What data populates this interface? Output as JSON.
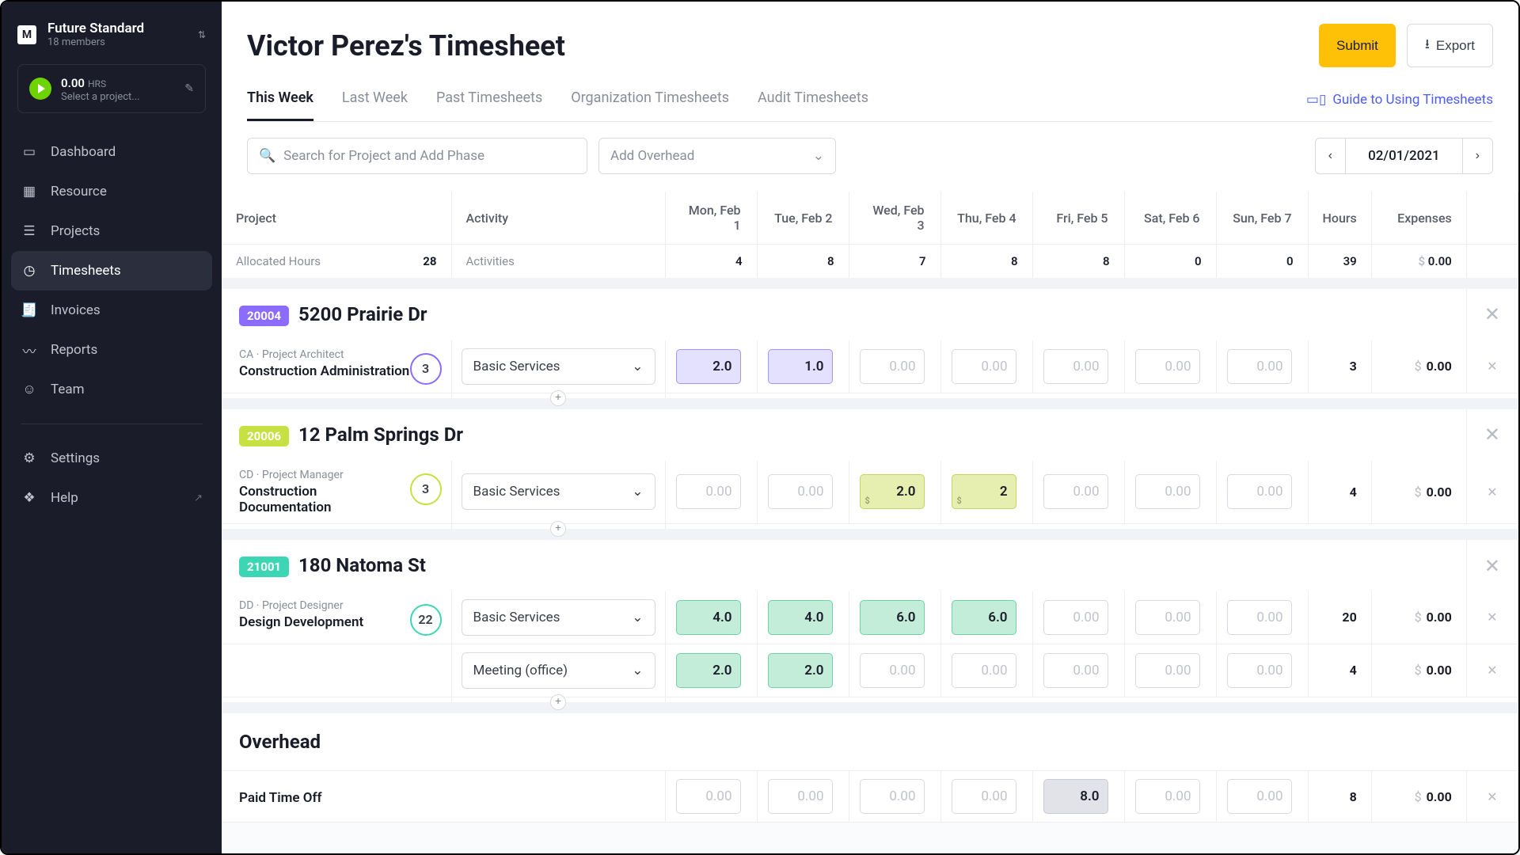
{
  "org": {
    "logo": "M",
    "name": "Future Standard",
    "members": "18 members"
  },
  "timer": {
    "hours": "0.00",
    "hrs_label": "HRS",
    "subtitle": "Select a project..."
  },
  "nav": {
    "dashboard": "Dashboard",
    "resource": "Resource",
    "projects": "Projects",
    "timesheets": "Timesheets",
    "invoices": "Invoices",
    "reports": "Reports",
    "team": "Team",
    "settings": "Settings",
    "help": "Help"
  },
  "header": {
    "title": "Victor Perez's Timesheet",
    "submit": "Submit",
    "export": "Export"
  },
  "tabs": {
    "this_week": "This Week",
    "last_week": "Last Week",
    "past": "Past Timesheets",
    "org": "Organization Timesheets",
    "audit": "Audit Timesheets",
    "guide": "Guide to Using Timesheets"
  },
  "controls": {
    "search_placeholder": "Search for Project and Add Phase",
    "overhead_placeholder": "Add Overhead",
    "date": "02/01/2021"
  },
  "columns": {
    "project": "Project",
    "activity": "Activity",
    "mon": "Mon, Feb 1",
    "tue": "Tue, Feb 2",
    "wed": "Wed, Feb 3",
    "thu": "Thu, Feb 4",
    "fri": "Fri, Feb 5",
    "sat": "Sat, Feb 6",
    "sun": "Sun, Feb 7",
    "hours": "Hours",
    "expenses": "Expenses"
  },
  "alloc": {
    "label": "Allocated Hours",
    "total": "28",
    "activities_label": "Activities",
    "mon": "4",
    "tue": "8",
    "wed": "7",
    "thu": "8",
    "fri": "8",
    "sat": "0",
    "sun": "0",
    "hours": "39",
    "expenses_cur": "$",
    "expenses": "0.00"
  },
  "colors": {
    "badge_purple": "#8b6cff",
    "badge_lime": "#c7e042",
    "badge_teal": "#3dd6b5",
    "fill_purple_bg": "#e4e0ff",
    "fill_purple_border": "#a693ff",
    "fill_lime_bg": "#e6eeb0",
    "fill_lime_border": "#c3d461",
    "fill_teal_bg": "#c3ecd9",
    "fill_teal_border": "#6dd3a5",
    "fill_gray_bg": "#e2e3e8",
    "fill_gray_border": "#c9cbd3"
  },
  "projects": [
    {
      "code": "20004",
      "badge_color": "#8b6cff",
      "name": "5200 Prairie Dr",
      "rows": [
        {
          "role": "CA · Project Architect",
          "phase": "Construction Administration",
          "budget": "3",
          "budget_color": "#8b6cff",
          "activity": "Basic Services",
          "fill_bg": "#e4e0ff",
          "fill_border": "#a693ff",
          "mon": "2.0",
          "tue": "1.0",
          "wed": "",
          "thu": "",
          "fri": "",
          "sat": "",
          "sun": "",
          "total": "3",
          "exp": "0.00"
        }
      ]
    },
    {
      "code": "20006",
      "badge_color": "#c7e042",
      "name": "12 Palm Springs Dr",
      "rows": [
        {
          "role": "CD · Project Manager",
          "phase": "Construction Documentation",
          "budget": "3",
          "budget_color": "#c7e042",
          "activity": "Basic Services",
          "fill_bg": "#e6eeb0",
          "fill_border": "#c3d461",
          "show_dollar": true,
          "mon": "",
          "tue": "",
          "wed": "2.0",
          "thu": "2",
          "fri": "",
          "sat": "",
          "sun": "",
          "total": "4",
          "exp": "0.00"
        }
      ]
    },
    {
      "code": "21001",
      "badge_color": "#3dd6b5",
      "name": "180 Natoma St",
      "rows": [
        {
          "role": "DD · Project Designer",
          "phase": "Design Development",
          "budget": "22",
          "budget_color": "#3dd6b5",
          "activity": "Basic Services",
          "fill_bg": "#c3ecd9",
          "fill_border": "#6dd3a5",
          "mon": "4.0",
          "tue": "4.0",
          "wed": "6.0",
          "thu": "6.0",
          "fri": "",
          "sat": "",
          "sun": "",
          "total": "20",
          "exp": "0.00"
        },
        {
          "role": "",
          "phase": "",
          "activity": "Meeting (office)",
          "fill_bg": "#c3ecd9",
          "fill_border": "#6dd3a5",
          "mon": "2.0",
          "tue": "2.0",
          "wed": "",
          "thu": "",
          "fri": "",
          "sat": "",
          "sun": "",
          "total": "4",
          "exp": "0.00"
        }
      ]
    }
  ],
  "overhead": {
    "title": "Overhead",
    "rows": [
      {
        "phase": "Paid Time Off",
        "fill_bg": "#e2e3e8",
        "fill_border": "#c9cbd3",
        "mon": "",
        "tue": "",
        "wed": "",
        "thu": "",
        "fri": "8.0",
        "sat": "",
        "sun": "",
        "total": "8",
        "exp": "0.00"
      }
    ]
  },
  "currency": "$",
  "empty_placeholder": "0.00"
}
